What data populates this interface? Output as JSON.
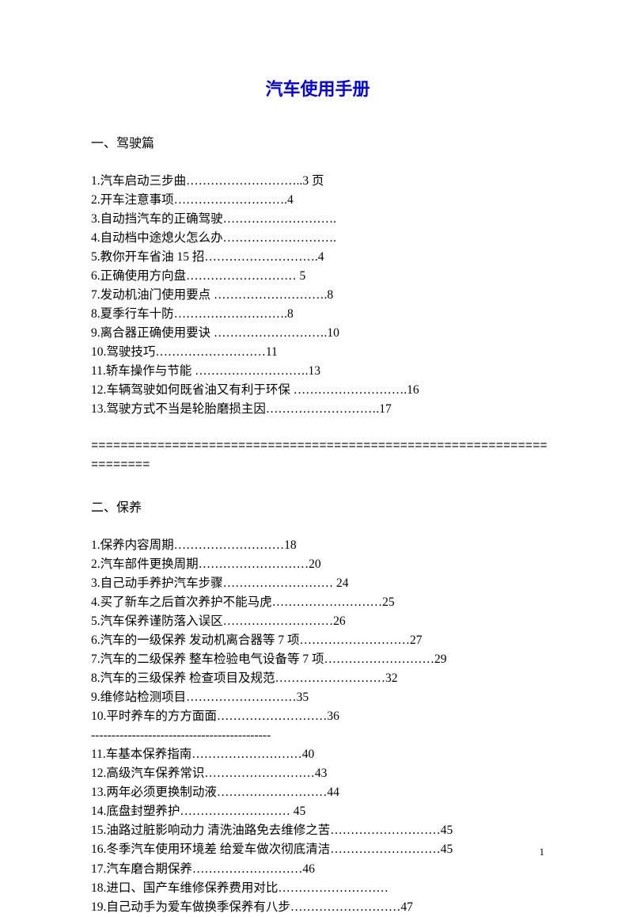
{
  "title": "汽车使用手册",
  "section1": {
    "header": "一、驾驶篇",
    "items": [
      "1.汽车启动三步曲………………………..3 页",
      "2.开车注意事项……………………….4",
      "3.自动挡汽车的正确驾驶……………………….",
      "4.自动档中途熄火怎么办……………………….",
      "5.教你开车省油 15 招……………………….4",
      "6.正确使用方向盘……………………… 5",
      "7.发动机油门使用要点 ……………………….8",
      "8.夏季行车十防……………………….8",
      "9.离合器正确使用要诀 ……………………….10",
      "10.驾驶技巧………………………11",
      "11.轿车操作与节能 ……………………….13",
      "12.车辆驾驶如何既省油又有利于环保 ……………………….16",
      "13.驾驶方式不当是轮胎磨损主因……………………….17"
    ]
  },
  "divider1": "==============================================================",
  "divider2": "========",
  "section2": {
    "header": "二、保养",
    "items_part1": [
      "1.保养内容周期………………………18",
      "2.汽车部件更换周期………………………20",
      "3.自己动手养护汽车步骤……………………… 24",
      "4.买了新车之后首次养护不能马虎………………………25",
      "5.汽车保养谨防落入误区………………………26",
      "6.汽车的一级保养 发动机离合器等 7 项………………………27",
      "7.汽车的二级保养 整车检验电气设备等 7 项………………………29",
      "8.汽车的三级保养 检查项目及规范………………………32",
      "9.维修站检测项目………………………35",
      "10.平时养车的方方面面………………………36"
    ],
    "dash_separator": "--------------------------------------------",
    "items_part2": [
      "11.车基本保养指南………………………40",
      "12.高级汽车保养常识………………………43",
      "13.两年必须更换制动液………………………44",
      "14.底盘封塑养护……………………… 45",
      "15.油路过脏影响动力 清洗油路免去维修之苦………………………45",
      "16.冬季汽车使用环境差 给爱车做次彻底清洁………………………45",
      "17.汽车磨合期保养………………………46",
      "18.进口、国产车维修保养费用对比………………………",
      "19.自己动手为爱车做换季保养有八步………………………47"
    ]
  },
  "page_number": "1"
}
